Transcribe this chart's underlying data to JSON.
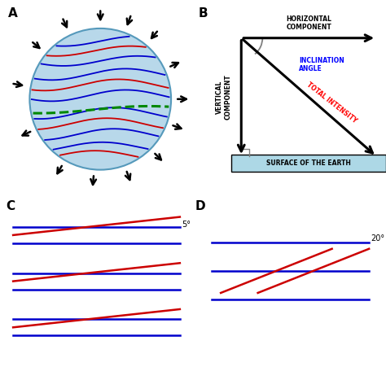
{
  "bg_color": "#ffffff",
  "sphere_color": "#b8d8ea",
  "sphere_edge_color": "#5599bb",
  "blue_line_color": "#0000cc",
  "red_line_color": "#cc0000",
  "green_dash_color": "#008800",
  "arrow_color": "#000000",
  "surface_color": "#add8e6",
  "label_A": "A",
  "label_B": "B",
  "label_C": "C",
  "label_D": "D",
  "surface_label": "SURFACE OF THE EARTH",
  "angle_C": "5°",
  "angle_D": "20°",
  "horiz_text": "HORIZONTAL\nCOMPONENT",
  "vert_text": "VERTICAL\nCOMPONENT",
  "incl_text": "INCLINATION\nANGLE",
  "total_text": "TOTAL INTENSITY"
}
